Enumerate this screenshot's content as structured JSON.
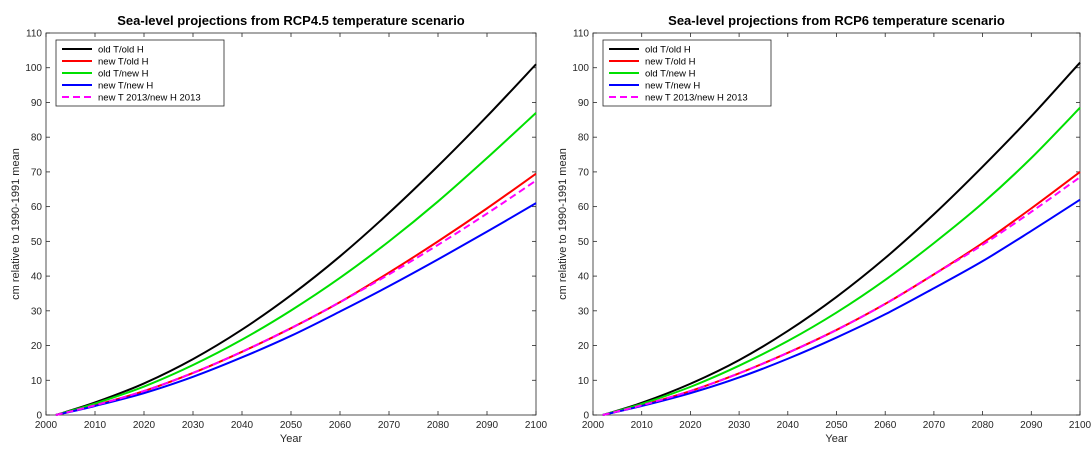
{
  "chart_data": [
    {
      "type": "line",
      "title": "Sea-level projections from RCP4.5 temperature scenario",
      "xlabel": "Year",
      "ylabel": "cm relative to 1990-1991 mean",
      "xlim": [
        2000,
        2100
      ],
      "ylim": [
        0,
        110
      ],
      "xticks": [
        2000,
        2010,
        2020,
        2030,
        2040,
        2050,
        2060,
        2070,
        2080,
        2090,
        2100
      ],
      "yticks": [
        0,
        10,
        20,
        30,
        40,
        50,
        60,
        70,
        80,
        90,
        100,
        110
      ],
      "grid": false,
      "legend_position": "top-left",
      "x": [
        2002,
        2010,
        2020,
        2030,
        2040,
        2050,
        2060,
        2070,
        2080,
        2090,
        2100
      ],
      "series": [
        {
          "name": "old T/old H",
          "color": "#000000",
          "dash": "solid",
          "values": [
            0,
            3.6,
            9.1,
            16.1,
            24.6,
            34.5,
            45.7,
            58.2,
            71.7,
            86.0,
            101.0
          ]
        },
        {
          "name": "new T/old H",
          "color": "#ff0000",
          "dash": "solid",
          "values": [
            0,
            2.8,
            6.9,
            12.1,
            18.2,
            25.0,
            32.5,
            41.0,
            50.0,
            59.5,
            69.5
          ]
        },
        {
          "name": "old T/new H",
          "color": "#00e000",
          "dash": "solid",
          "values": [
            0,
            3.3,
            8.2,
            14.4,
            21.7,
            30.1,
            39.5,
            50.0,
            61.5,
            74.0,
            87.0
          ]
        },
        {
          "name": "new T/new H",
          "color": "#0000ff",
          "dash": "solid",
          "values": [
            0,
            2.6,
            6.3,
            11.0,
            16.6,
            22.8,
            29.8,
            37.1,
            44.8,
            52.8,
            61.0
          ]
        },
        {
          "name": "new T 2013/new H 2013",
          "color": "#ff00ff",
          "dash": "dashed",
          "values": [
            0,
            2.8,
            6.9,
            12.1,
            18.2,
            25.0,
            32.5,
            40.5,
            49.0,
            58.0,
            67.5
          ]
        }
      ]
    },
    {
      "type": "line",
      "title": "Sea-level projections from RCP6 temperature scenario",
      "xlabel": "Year",
      "ylabel": "cm relative to 1990-1991 mean",
      "xlim": [
        2000,
        2100
      ],
      "ylim": [
        0,
        110
      ],
      "xticks": [
        2000,
        2010,
        2020,
        2030,
        2040,
        2050,
        2060,
        2070,
        2080,
        2090,
        2100
      ],
      "yticks": [
        0,
        10,
        20,
        30,
        40,
        50,
        60,
        70,
        80,
        90,
        100,
        110
      ],
      "grid": false,
      "legend_position": "top-left",
      "x": [
        2002,
        2010,
        2020,
        2030,
        2040,
        2050,
        2060,
        2070,
        2080,
        2090,
        2100
      ],
      "series": [
        {
          "name": "old T/old H",
          "color": "#000000",
          "dash": "solid",
          "values": [
            0,
            3.5,
            9.0,
            15.8,
            24.2,
            34.0,
            45.2,
            57.8,
            71.5,
            86.0,
            101.5
          ]
        },
        {
          "name": "new T/old H",
          "color": "#ff0000",
          "dash": "solid",
          "values": [
            0,
            2.8,
            6.9,
            12.0,
            17.9,
            24.5,
            32.0,
            40.5,
            49.5,
            59.5,
            70.0
          ]
        },
        {
          "name": "old T/new H",
          "color": "#00e000",
          "dash": "solid",
          "values": [
            0,
            3.2,
            8.1,
            14.2,
            21.3,
            29.5,
            38.9,
            49.5,
            61.0,
            74.0,
            88.5
          ]
        },
        {
          "name": "new T/new H",
          "color": "#0000ff",
          "dash": "solid",
          "values": [
            0,
            2.6,
            6.3,
            10.8,
            16.2,
            22.3,
            29.0,
            36.5,
            44.3,
            53.0,
            62.0
          ]
        },
        {
          "name": "new T 2013/new H 2013",
          "color": "#ff00ff",
          "dash": "dashed",
          "values": [
            0,
            2.8,
            6.9,
            12.0,
            17.9,
            24.5,
            32.0,
            40.5,
            49.0,
            58.5,
            68.5
          ]
        }
      ]
    }
  ]
}
